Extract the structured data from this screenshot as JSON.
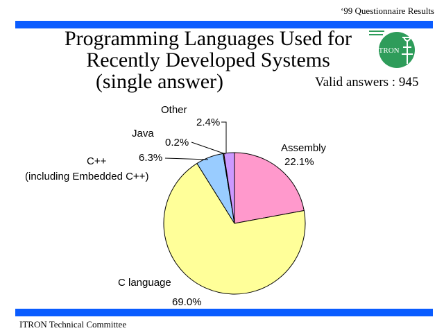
{
  "header": {
    "note": "‘99 Questionnaire Results"
  },
  "footer": {
    "text": "ITRON Technical Committee"
  },
  "logo": {
    "text": "ITRON"
  },
  "colors": {
    "bar": "#0a5cff",
    "logo_green": "#2e9c5a"
  },
  "chart_data": {
    "type": "pie",
    "title": "Programming Languages Used for\nRecently Developed Systems\n(single answer)",
    "subtitle": "Valid answers : 945",
    "slices": [
      {
        "label": "Assembly",
        "value": 22.1,
        "value_label": "22.1%",
        "color": "#ff99cc"
      },
      {
        "label": "C language",
        "value": 69.0,
        "value_label": "69.0%",
        "color": "#ffff99"
      },
      {
        "label": "C++\n(including Embedded C++)",
        "value": 6.3,
        "value_label": "6.3%",
        "color": "#99ccff"
      },
      {
        "label": "Java",
        "value": 0.2,
        "value_label": "0.2%",
        "color": "#ff9933"
      },
      {
        "label": "Other",
        "value": 2.4,
        "value_label": "2.4%",
        "color": "#cc99ff"
      }
    ]
  }
}
